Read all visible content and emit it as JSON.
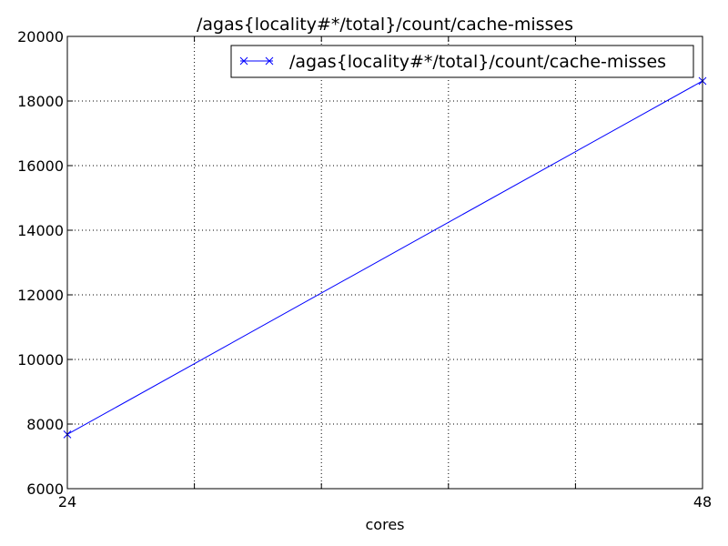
{
  "chart_data": {
    "type": "line",
    "title": "/agas{locality#*/total}/count/cache-misses",
    "xlabel": "cores",
    "ylabel": "",
    "xlim": [
      24,
      48
    ],
    "ylim": [
      6000,
      20000
    ],
    "x_ticks": [
      24,
      48
    ],
    "x_grid": [
      24,
      28.8,
      33.6,
      38.4,
      43.2,
      48
    ],
    "y_ticks": [
      6000,
      8000,
      10000,
      12000,
      14000,
      16000,
      18000,
      20000
    ],
    "grid": true,
    "legend": "top-right",
    "series": [
      {
        "name": "/agas{locality#*/total}/count/cache-misses",
        "color": "#0000ff",
        "marker": "x",
        "x": [
          24,
          48
        ],
        "y": [
          7680,
          18620
        ]
      }
    ]
  }
}
